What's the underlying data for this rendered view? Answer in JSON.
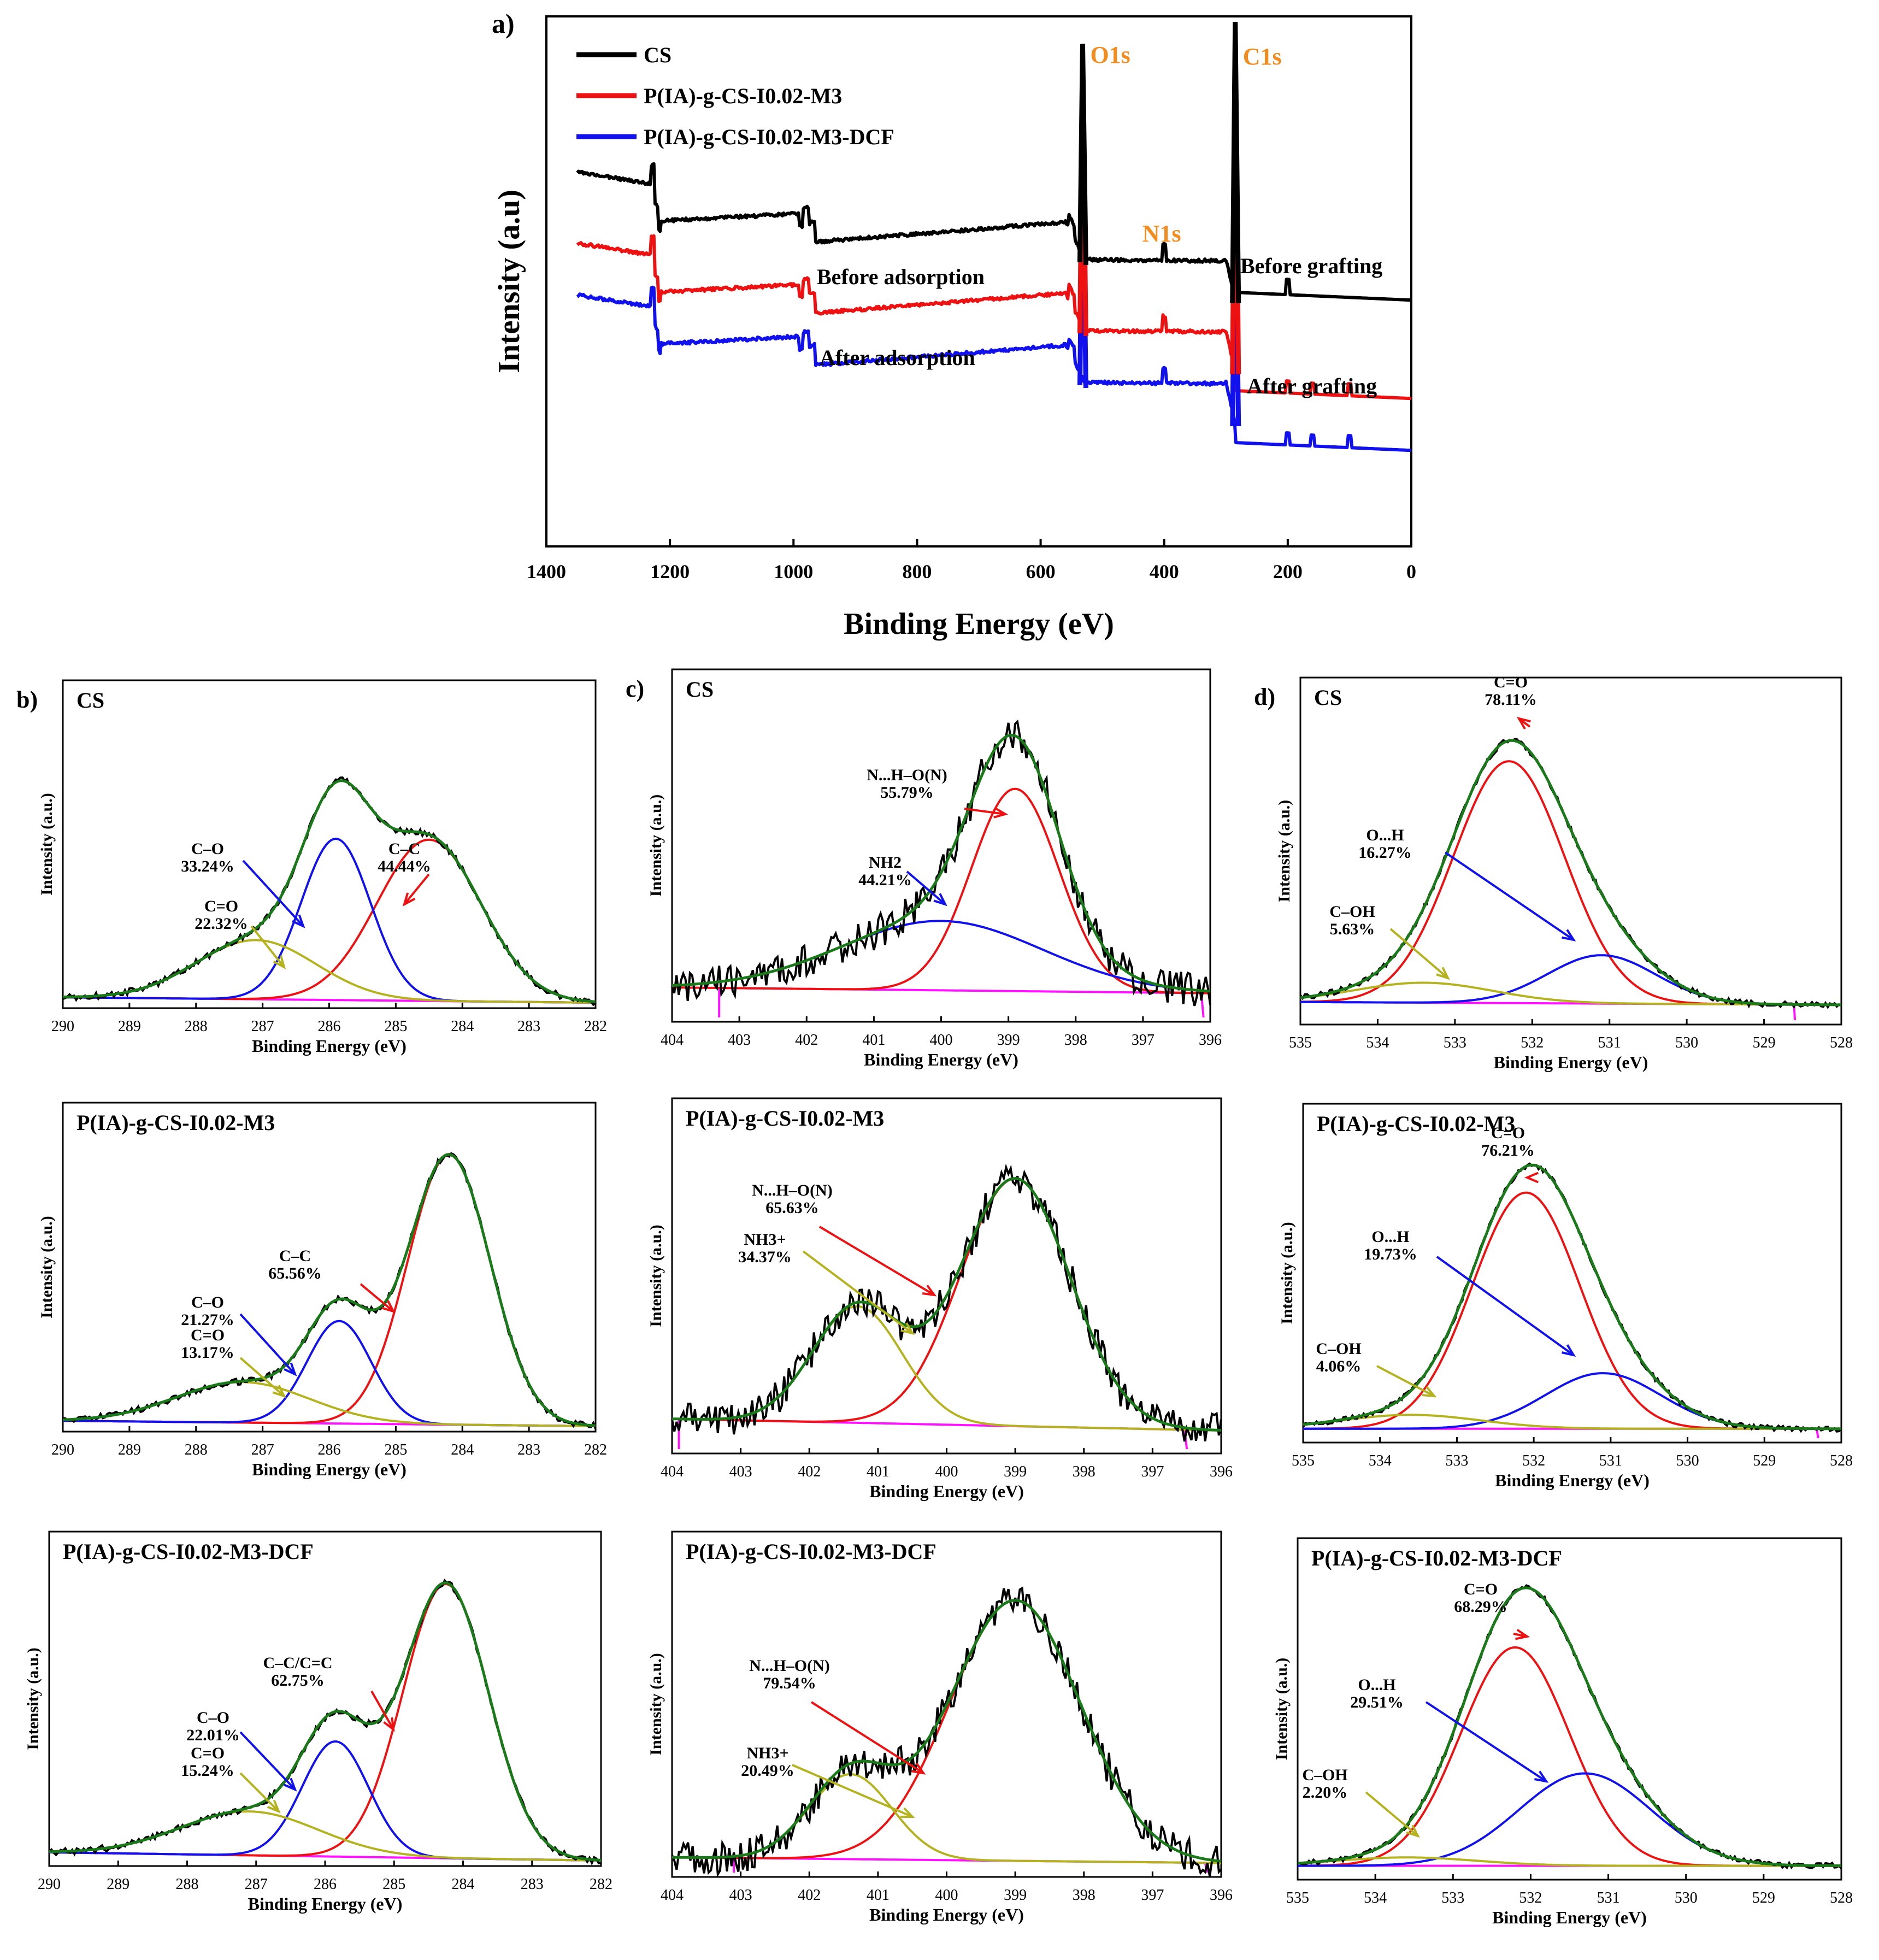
{
  "colors": {
    "black": "#000000",
    "red": "#ee1111",
    "blue": "#1111ee",
    "olive": "#b4b21e",
    "green": "#1a7a1a",
    "magenta": "#ff10ff",
    "orange": "#f28c1e"
  },
  "chart_data": [
    {
      "id": "a",
      "panel_label": "a)",
      "type": "line",
      "title": "",
      "xlabel": "Binding Energy (eV)",
      "ylabel": "Intensity (a.u)",
      "xlim": [
        1400,
        0
      ],
      "x_reversed": true,
      "xticks": [
        1400,
        1200,
        1000,
        800,
        600,
        400,
        200,
        0
      ],
      "xtick_labels": [
        "1400",
        "1200",
        "1000",
        "800",
        "600",
        "400",
        "200",
        "0"
      ],
      "legend": [
        "CS",
        "P(IA)-g-CS-I0.02-M3",
        "P(IA)-g-CS-I0.02-M3-DCF"
      ],
      "legend_position": "top-left",
      "series": [
        {
          "name": "CS",
          "color": "black"
        },
        {
          "name": "P(IA)-g-CS-I0.02-M3",
          "color": "red"
        },
        {
          "name": "P(IA)-g-CS-I0.02-M3-DCF",
          "color": "blue"
        }
      ],
      "peak_labels": [
        {
          "text": "O1s",
          "x": 532
        },
        {
          "text": "C1s",
          "x": 285
        },
        {
          "text": "N1s",
          "x": 400
        }
      ],
      "annotations": [
        "Before adsorption",
        "After adsorption",
        "Before grafting",
        "After grafting"
      ]
    },
    {
      "id": "b1",
      "type": "line",
      "region": "C1s",
      "sample_label": "CS",
      "panel_label": "b)",
      "xlabel": "Binding Energy (eV)",
      "ylabel": "Intensity (a.u.)",
      "xlim": [
        290,
        282
      ],
      "x_reversed": true,
      "xticks": [
        290,
        289,
        288,
        287,
        286,
        285,
        284,
        283,
        282
      ],
      "xtick_labels": [
        "290",
        "289",
        "288",
        "287",
        "286",
        "285",
        "284",
        "283",
        "282"
      ],
      "components": [
        {
          "label": "C–C",
          "percent": "44.44%",
          "center": 284.5,
          "height": 0.6,
          "sigma": 0.78,
          "color": "red"
        },
        {
          "label": "C–O",
          "percent": "33.24%",
          "center": 285.9,
          "height": 0.6,
          "sigma": 0.52,
          "color": "blue"
        },
        {
          "label": "C=O",
          "percent": "22.32%",
          "center": 287.1,
          "height": 0.22,
          "sigma": 0.9,
          "color": "olive"
        }
      ]
    },
    {
      "id": "b2",
      "type": "line",
      "region": "C1s",
      "sample_label": "P(IA)-g-CS-I0.02-M3",
      "xlabel": "Binding Energy (eV)",
      "ylabel": "Intensity (a.u.)",
      "xlim": [
        290,
        282
      ],
      "x_reversed": true,
      "xticks": [
        290,
        289,
        288,
        287,
        286,
        285,
        284,
        283,
        282
      ],
      "xtick_labels": [
        "290",
        "289",
        "288",
        "287",
        "286",
        "285",
        "284",
        "283",
        "282"
      ],
      "components": [
        {
          "label": "C–C",
          "percent": "65.56%",
          "center": 284.2,
          "height": 1.0,
          "sigma": 0.62,
          "color": "red"
        },
        {
          "label": "C–O",
          "percent": "21.27%",
          "center": 285.85,
          "height": 0.38,
          "sigma": 0.48,
          "color": "blue"
        },
        {
          "label": "C=O",
          "percent": "13.17%",
          "center": 287.3,
          "height": 0.15,
          "sigma": 1.0,
          "color": "olive"
        }
      ]
    },
    {
      "id": "b3",
      "type": "line",
      "region": "C1s",
      "sample_label": "P(IA)-g-CS-I0.02-M3-DCF",
      "xlabel": "Binding Energy (eV)",
      "ylabel": "Intensity (a.u.)",
      "xlim": [
        290,
        282
      ],
      "x_reversed": true,
      "xticks": [
        290,
        289,
        288,
        287,
        286,
        285,
        284,
        283,
        282
      ],
      "xtick_labels": [
        "290",
        "289",
        "288",
        "287",
        "286",
        "285",
        "284",
        "283",
        "282"
      ],
      "components": [
        {
          "label": "C–C/C=C",
          "percent": "62.75%",
          "center": 284.25,
          "height": 1.0,
          "sigma": 0.62,
          "color": "red"
        },
        {
          "label": "C–O",
          "percent": "22.01%",
          "center": 285.85,
          "height": 0.42,
          "sigma": 0.48,
          "color": "blue"
        },
        {
          "label": "C=O",
          "percent": "15.24%",
          "center": 287.1,
          "height": 0.16,
          "sigma": 1.0,
          "color": "olive"
        }
      ]
    },
    {
      "id": "c1",
      "type": "line",
      "region": "N1s",
      "sample_label": "CS",
      "panel_label": "c)",
      "xlabel": "Binding Energy (eV)",
      "ylabel": "Intensity (a.u.)",
      "xlim": [
        404,
        396
      ],
      "x_reversed": true,
      "xticks": [
        404,
        403,
        402,
        401,
        400,
        399,
        398,
        397,
        396
      ],
      "xtick_labels": [
        "404",
        "403",
        "402",
        "401",
        "400",
        "399",
        "398",
        "397",
        "396"
      ],
      "components": [
        {
          "label": "N...H–O(N)",
          "percent": "55.79%",
          "center": 398.9,
          "height": 0.7,
          "sigma": 0.65,
          "color": "red"
        },
        {
          "label": "NH2",
          "percent": "44.21%",
          "center": 400.0,
          "height": 0.24,
          "sigma": 1.5,
          "color": "blue"
        }
      ]
    },
    {
      "id": "c2",
      "type": "line",
      "region": "N1s",
      "sample_label": "P(IA)-g-CS-I0.02-M3",
      "xlabel": "Binding Energy (eV)",
      "ylabel": "Intensity (a.u.)",
      "xlim": [
        404,
        396
      ],
      "x_reversed": true,
      "xticks": [
        404,
        403,
        402,
        401,
        400,
        399,
        398,
        397,
        396
      ],
      "xtick_labels": [
        "404",
        "403",
        "402",
        "401",
        "400",
        "399",
        "398",
        "397",
        "396"
      ],
      "components": [
        {
          "label": "N...H–O(N)",
          "percent": "65.63%",
          "center": 399.0,
          "height": 0.85,
          "sigma": 0.8,
          "color": "red"
        },
        {
          "label": "NH3+",
          "percent": "34.37%",
          "center": 401.3,
          "height": 0.4,
          "sigma": 0.65,
          "color": "olive"
        }
      ]
    },
    {
      "id": "c3",
      "type": "line",
      "region": "N1s",
      "sample_label": "P(IA)-g-CS-I0.02-M3-DCF",
      "xlabel": "Binding Energy (eV)",
      "ylabel": "Intensity (a.u.)",
      "xlim": [
        404,
        396
      ],
      "x_reversed": true,
      "xticks": [
        404,
        403,
        402,
        401,
        400,
        399,
        398,
        397,
        396
      ],
      "xtick_labels": [
        "404",
        "403",
        "402",
        "401",
        "400",
        "399",
        "398",
        "397",
        "396"
      ],
      "components": [
        {
          "label": "N...H–O(N)",
          "percent": "79.54%",
          "center": 399.0,
          "height": 0.92,
          "sigma": 0.95,
          "color": "red"
        },
        {
          "label": "NH3+",
          "percent": "20.49%",
          "center": 401.4,
          "height": 0.3,
          "sigma": 0.6,
          "color": "olive"
        }
      ]
    },
    {
      "id": "d1",
      "type": "line",
      "region": "O1s",
      "sample_label": "CS",
      "panel_label": "d)",
      "xlabel": "Binding Energy (eV)",
      "ylabel": "Intensity (a.u.)",
      "xlim": [
        535,
        528
      ],
      "x_reversed": true,
      "xticks": [
        535,
        534,
        533,
        532,
        531,
        530,
        529,
        528
      ],
      "xtick_labels": [
        "535",
        "534",
        "533",
        "532",
        "531",
        "530",
        "529",
        "528"
      ],
      "components": [
        {
          "label": "C=O",
          "percent": "78.11%",
          "center": 532.3,
          "height": 0.85,
          "sigma": 0.72,
          "color": "red"
        },
        {
          "label": "O...H",
          "percent": "16.27%",
          "center": 531.1,
          "height": 0.17,
          "sigma": 0.7,
          "color": "blue"
        },
        {
          "label": "C–OH",
          "percent": "5.63%",
          "center": 533.4,
          "height": 0.07,
          "sigma": 0.9,
          "color": "olive"
        }
      ]
    },
    {
      "id": "d2",
      "type": "line",
      "region": "O1s",
      "sample_label": "P(IA)-g-CS-I0.02-M3",
      "xlabel": "Binding Energy (eV)",
      "ylabel": "Intensity (a.u.)",
      "xlim": [
        535,
        528
      ],
      "x_reversed": true,
      "xticks": [
        535,
        534,
        533,
        532,
        531,
        530,
        529,
        528
      ],
      "xtick_labels": [
        "535",
        "534",
        "533",
        "532",
        "531",
        "530",
        "529",
        "528"
      ],
      "components": [
        {
          "label": "C=O",
          "percent": "76.21%",
          "center": 532.1,
          "height": 0.85,
          "sigma": 0.7,
          "color": "red"
        },
        {
          "label": "O...H",
          "percent": "19.73%",
          "center": 531.1,
          "height": 0.2,
          "sigma": 0.75,
          "color": "blue"
        },
        {
          "label": "C–OH",
          "percent": "4.06%",
          "center": 533.6,
          "height": 0.05,
          "sigma": 0.9,
          "color": "olive"
        }
      ]
    },
    {
      "id": "d3",
      "type": "line",
      "region": "O1s",
      "sample_label": "P(IA)-g-CS-I0.02-M3-DCF",
      "xlabel": "Binding Energy (eV)",
      "ylabel": "Intensity (a.u.)",
      "xlim": [
        535,
        528
      ],
      "x_reversed": true,
      "xticks": [
        535,
        534,
        533,
        532,
        531,
        530,
        529,
        528
      ],
      "xtick_labels": [
        "535",
        "534",
        "533",
        "532",
        "531",
        "530",
        "529",
        "528"
      ],
      "components": [
        {
          "label": "C=O",
          "percent": "68.29%",
          "center": 532.2,
          "height": 0.78,
          "sigma": 0.7,
          "color": "red"
        },
        {
          "label": "O...H",
          "percent": "29.51%",
          "center": 531.3,
          "height": 0.33,
          "sigma": 0.85,
          "color": "blue"
        },
        {
          "label": "C–OH",
          "percent": "2.20%",
          "center": 533.6,
          "height": 0.03,
          "sigma": 0.9,
          "color": "olive"
        }
      ]
    }
  ]
}
